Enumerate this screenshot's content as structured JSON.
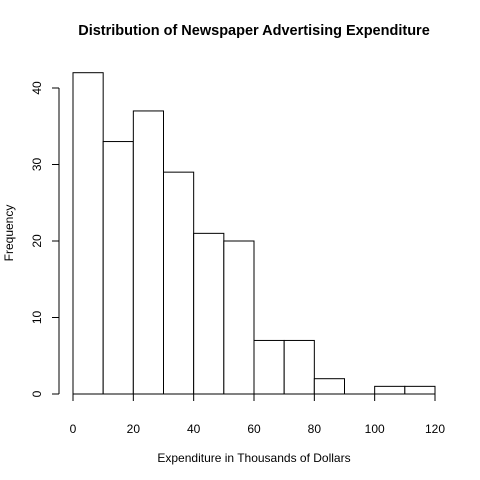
{
  "chart_data": {
    "type": "bar",
    "title": "Distribution of Newspaper Advertising Expenditure",
    "xlabel": "Expenditure in Thousands of Dollars",
    "ylabel": "Frequency",
    "bin_edges": [
      0,
      10,
      20,
      30,
      40,
      50,
      60,
      70,
      80,
      90,
      100,
      110,
      120
    ],
    "values": [
      42,
      33,
      37,
      29,
      21,
      20,
      7,
      7,
      2,
      0,
      1,
      1
    ],
    "xlim": [
      0,
      120
    ],
    "ylim": [
      0,
      42
    ],
    "x_ticks": [
      "0",
      "20",
      "40",
      "60",
      "80",
      "100",
      "120"
    ],
    "y_ticks": [
      "0",
      "10",
      "20",
      "30",
      "40"
    ],
    "grid": false,
    "legend": "none"
  }
}
